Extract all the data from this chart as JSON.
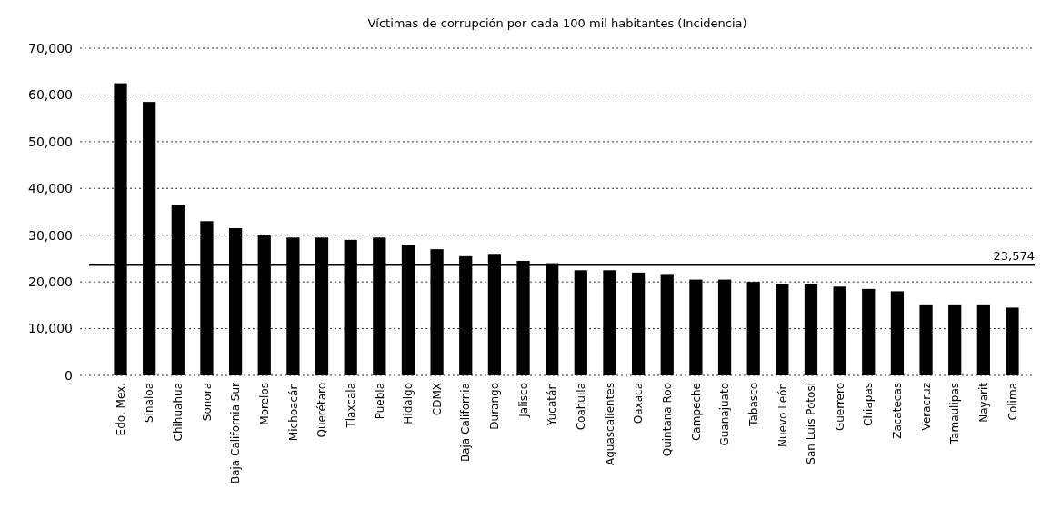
{
  "chart_data": {
    "type": "bar",
    "title": "Víctimas de corrupción por cada 100 mil habitantes (Incidencia)",
    "categories": [
      "Edo. Mex.",
      "Sinaloa",
      "Chihuahua",
      "Sonora",
      "Baja California Sur",
      "Morelos",
      "Michoacán",
      "Querétaro",
      "Tlaxcala",
      "Puebla",
      "Hidalgo",
      "CDMX",
      "Baja California",
      "Durango",
      "Jalisco",
      "Yucatán",
      "Coahuila",
      "Aguascalientes",
      "Oaxaca",
      "Quintana Roo",
      "Campeche",
      "Guanajuato",
      "Tabasco",
      "Nuevo León",
      "San Luis Potosí",
      "Guerrero",
      "Chiapas",
      "Zacatecas",
      "Veracruz",
      "Tamaulipas",
      "Nayarit",
      "Colima"
    ],
    "values": [
      62500,
      58500,
      36500,
      33000,
      31500,
      30000,
      29500,
      29500,
      29000,
      29500,
      28000,
      27000,
      25500,
      26000,
      24500,
      24000,
      22500,
      22500,
      22000,
      21500,
      20500,
      20500,
      20000,
      19500,
      19500,
      19000,
      18500,
      18000,
      15000,
      15000,
      15000,
      14500
    ],
    "color": "#000000",
    "ylim": [
      0,
      70000
    ],
    "yticks": [
      {
        "value": 0,
        "label": "0"
      },
      {
        "value": 10000,
        "label": "10,000"
      },
      {
        "value": 20000,
        "label": "20,000"
      },
      {
        "value": 30000,
        "label": "30,000"
      },
      {
        "value": 40000,
        "label": "40,000"
      },
      {
        "value": 50000,
        "label": "50,000"
      },
      {
        "value": 60000,
        "label": "60,000"
      },
      {
        "value": 70000,
        "label": "70,000"
      }
    ],
    "grid": "y",
    "ref_lines": [
      {
        "axis": "y",
        "value": 23574,
        "label": "23,574",
        "color": "#000000",
        "line_style": "solid"
      }
    ]
  }
}
